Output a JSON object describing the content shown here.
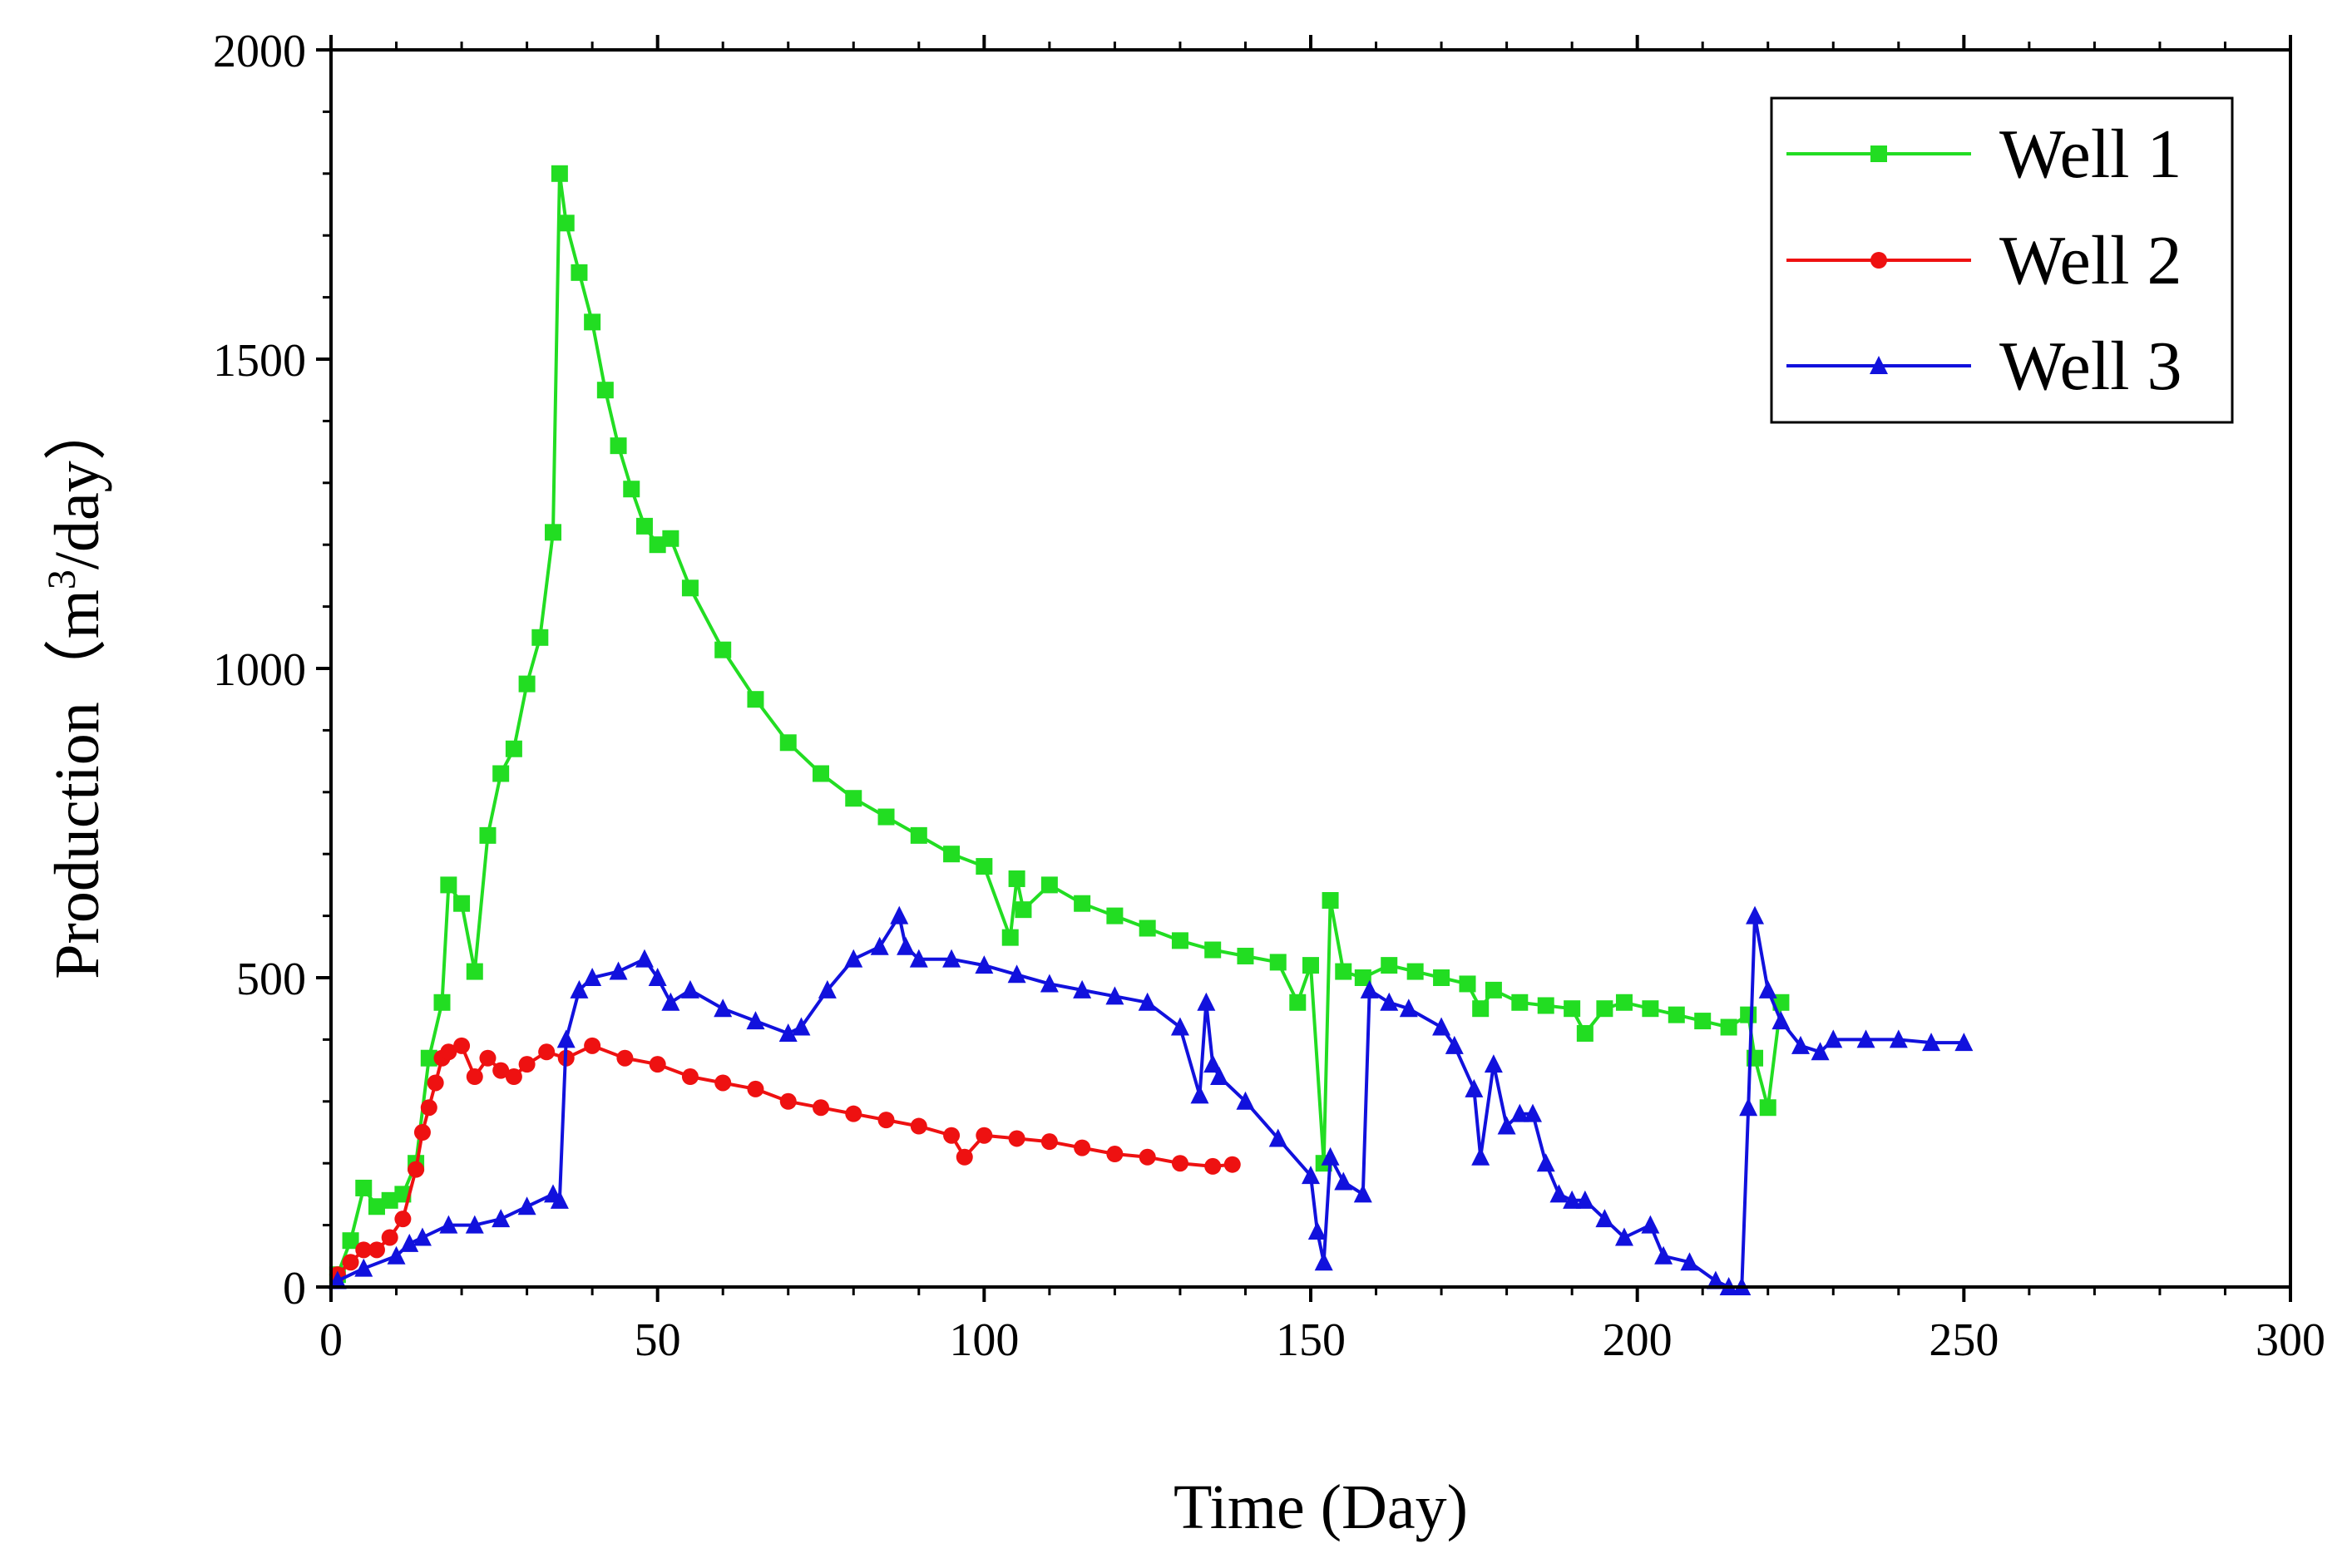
{
  "chart_data": {
    "type": "line",
    "title": "",
    "xlabel": "Time (Day)",
    "ylabel": {
      "prefix": "Production（m",
      "superscript": "3",
      "suffix": "/day）"
    },
    "xlim": [
      0,
      300
    ],
    "ylim": [
      0,
      2000
    ],
    "xticks": [
      "0",
      "50",
      "100",
      "150",
      "200",
      "250",
      "300"
    ],
    "yticks": [
      "0",
      "500",
      "1000",
      "1500",
      "2000"
    ],
    "grid": false,
    "legend_position": "top-right",
    "series": [
      {
        "name": "Well 1",
        "color": "#22dd22",
        "marker": "square",
        "x": [
          1,
          3,
          5,
          7,
          9,
          11,
          13,
          15,
          17,
          18,
          20,
          22,
          24,
          26,
          28,
          30,
          32,
          34,
          35,
          36,
          38,
          40,
          42,
          44,
          46,
          48,
          50,
          52,
          55,
          60,
          65,
          70,
          75,
          80,
          85,
          90,
          95,
          100,
          104,
          105,
          106,
          110,
          115,
          120,
          125,
          130,
          135,
          140,
          145,
          148,
          150,
          152,
          153,
          155,
          158,
          162,
          166,
          170,
          174,
          176,
          178,
          182,
          186,
          190,
          192,
          195,
          198,
          202,
          206,
          210,
          214,
          217,
          218,
          220,
          222
        ],
        "y": [
          20,
          75,
          160,
          130,
          140,
          150,
          200,
          370,
          460,
          650,
          620,
          510,
          730,
          830,
          870,
          975,
          1050,
          1220,
          1800,
          1720,
          1640,
          1560,
          1450,
          1360,
          1290,
          1230,
          1200,
          1210,
          1130,
          1030,
          950,
          880,
          830,
          790,
          760,
          730,
          700,
          680,
          565,
          660,
          610,
          650,
          620,
          600,
          580,
          560,
          545,
          535,
          525,
          460,
          520,
          200,
          625,
          510,
          500,
          520,
          510,
          500,
          490,
          450,
          480,
          460,
          455,
          450,
          410,
          450,
          460,
          450,
          440,
          430,
          420,
          440,
          370,
          290,
          460
        ]
      },
      {
        "name": "Well 2",
        "color": "#ee1111",
        "marker": "circle",
        "x": [
          1,
          3,
          5,
          7,
          9,
          11,
          13,
          14,
          15,
          16,
          17,
          18,
          20,
          22,
          24,
          26,
          28,
          30,
          33,
          36,
          40,
          45,
          50,
          55,
          60,
          65,
          70,
          75,
          80,
          85,
          90,
          95,
          97,
          100,
          105,
          110,
          115,
          120,
          125,
          130,
          135,
          138
        ],
        "y": [
          20,
          40,
          60,
          60,
          80,
          110,
          190,
          250,
          290,
          330,
          370,
          380,
          390,
          340,
          370,
          350,
          340,
          360,
          380,
          370,
          390,
          370,
          360,
          340,
          330,
          320,
          300,
          290,
          280,
          270,
          260,
          245,
          210,
          245,
          240,
          235,
          225,
          215,
          210,
          200,
          195,
          198
        ]
      },
      {
        "name": "Well 3",
        "color": "#1111dd",
        "marker": "triangle",
        "x": [
          1,
          5,
          10,
          12,
          14,
          18,
          22,
          26,
          30,
          34,
          35,
          36,
          38,
          40,
          44,
          48,
          50,
          52,
          55,
          60,
          65,
          70,
          72,
          76,
          80,
          84,
          87,
          88,
          90,
          95,
          100,
          105,
          110,
          115,
          120,
          125,
          130,
          133,
          134,
          135,
          136,
          140,
          145,
          150,
          151,
          152,
          153,
          155,
          158,
          159,
          162,
          165,
          170,
          172,
          175,
          176,
          178,
          180,
          182,
          184,
          186,
          188,
          190,
          192,
          195,
          198,
          202,
          204,
          208,
          212,
          214,
          216,
          217,
          218,
          220,
          222,
          225,
          228,
          230,
          235,
          240,
          245,
          250
        ],
        "y": [
          10,
          30,
          50,
          70,
          80,
          100,
          100,
          110,
          130,
          150,
          140,
          400,
          480,
          500,
          510,
          530,
          500,
          460,
          480,
          450,
          430,
          410,
          420,
          480,
          530,
          550,
          600,
          550,
          530,
          530,
          520,
          505,
          490,
          480,
          470,
          460,
          420,
          310,
          460,
          360,
          340,
          300,
          240,
          180,
          90,
          40,
          210,
          170,
          150,
          480,
          460,
          450,
          420,
          390,
          320,
          210,
          360,
          260,
          280,
          280,
          200,
          150,
          140,
          140,
          110,
          80,
          100,
          50,
          40,
          10,
          0,
          0,
          290,
          600,
          480,
          430,
          390,
          380,
          400,
          400,
          400,
          395,
          395
        ]
      }
    ]
  }
}
